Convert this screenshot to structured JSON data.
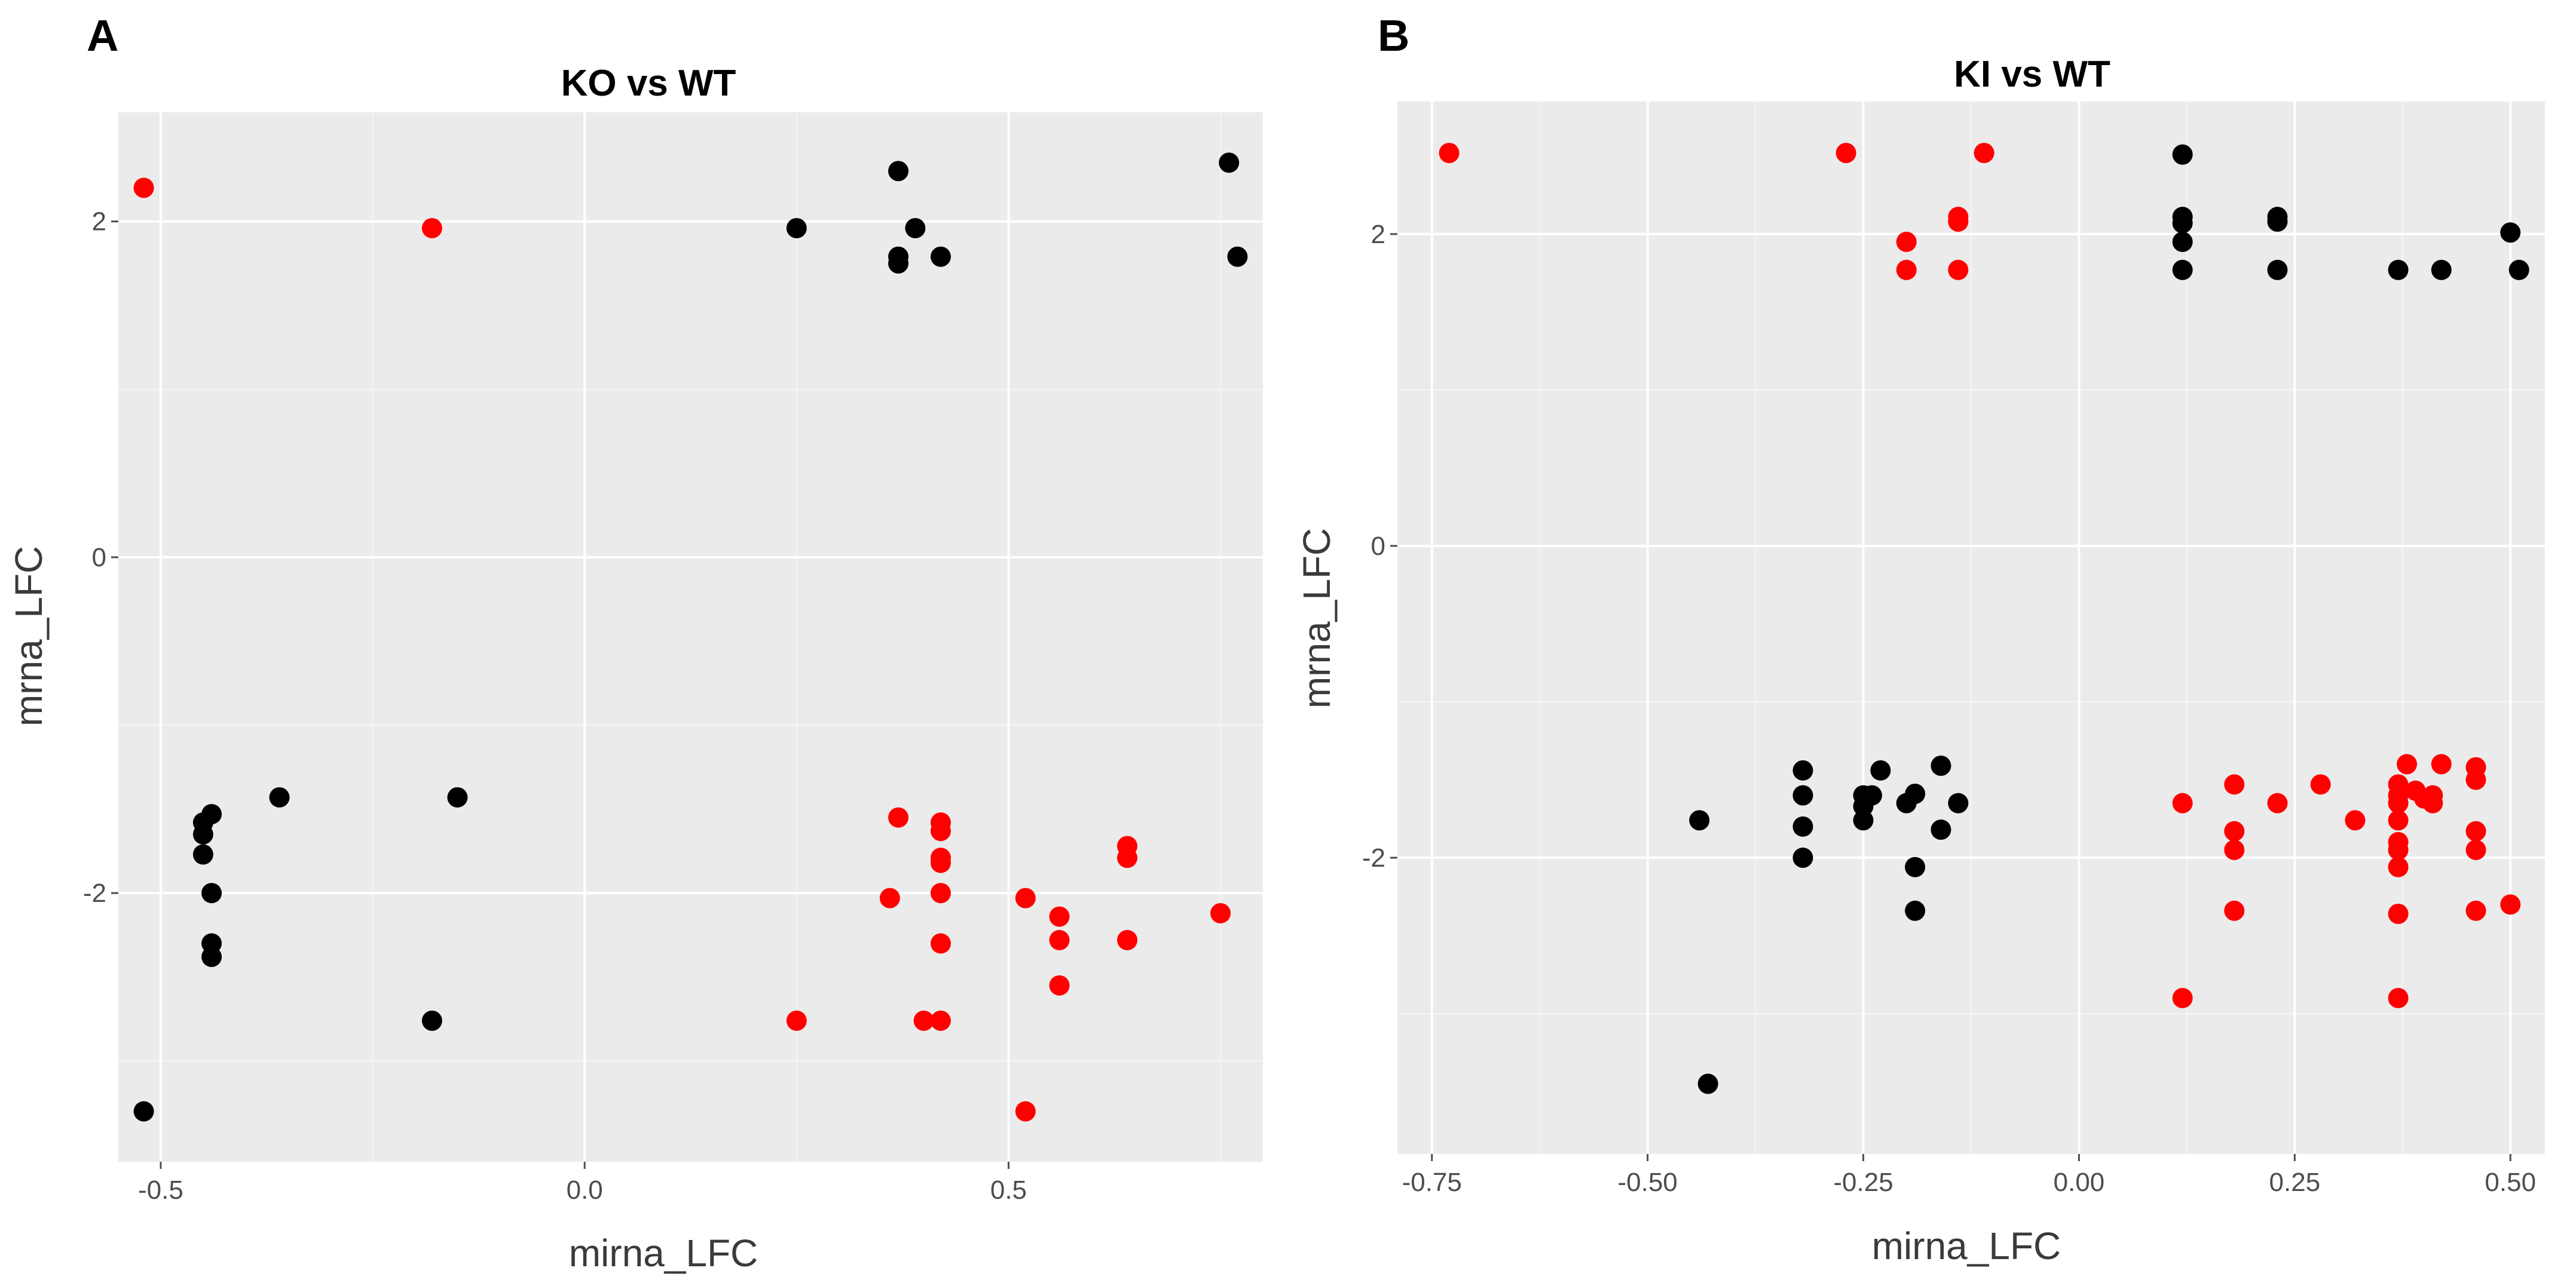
{
  "chart_data": [
    {
      "type": "scatter",
      "panel_label": "A",
      "title": "KO vs WT",
      "xlabel": "mirna_LFC",
      "ylabel": "mrna_LFC",
      "xlim": [
        -0.55,
        0.8
      ],
      "ylim": [
        -3.6,
        2.65
      ],
      "xticks": [
        -0.5,
        0.0,
        0.5
      ],
      "xtick_labels": [
        "-0.5",
        "0.0",
        "0.5"
      ],
      "yticks": [
        -2,
        0,
        2
      ],
      "ytick_labels": [
        "-2",
        "0",
        "2"
      ],
      "grid": true,
      "legend": "none",
      "series": [
        {
          "color": "#000000",
          "points": [
            [
              0.25,
              1.96
            ],
            [
              0.37,
              2.3
            ],
            [
              0.37,
              1.79
            ],
            [
              0.37,
              1.75
            ],
            [
              0.39,
              1.96
            ],
            [
              0.42,
              1.79
            ],
            [
              0.76,
              2.35
            ],
            [
              0.77,
              1.79
            ],
            [
              -0.52,
              -3.3
            ],
            [
              -0.45,
              -1.58
            ],
            [
              -0.45,
              -1.65
            ],
            [
              -0.45,
              -1.77
            ],
            [
              -0.44,
              -1.53
            ],
            [
              -0.44,
              -2.0
            ],
            [
              -0.44,
              -2.3
            ],
            [
              -0.44,
              -2.38
            ],
            [
              -0.36,
              -1.43
            ],
            [
              -0.15,
              -1.43
            ],
            [
              -0.18,
              -2.76
            ]
          ]
        },
        {
          "color": "#ff0000",
          "points": [
            [
              -0.52,
              2.2
            ],
            [
              -0.18,
              1.96
            ],
            [
              0.25,
              -2.76
            ],
            [
              0.36,
              -2.03
            ],
            [
              0.37,
              -1.55
            ],
            [
              0.4,
              -2.76
            ],
            [
              0.42,
              -1.58
            ],
            [
              0.42,
              -1.63
            ],
            [
              0.42,
              -1.79
            ],
            [
              0.42,
              -1.82
            ],
            [
              0.42,
              -2.0
            ],
            [
              0.42,
              -2.3
            ],
            [
              0.42,
              -2.76
            ],
            [
              0.52,
              -2.03
            ],
            [
              0.52,
              -3.3
            ],
            [
              0.56,
              -2.14
            ],
            [
              0.56,
              -2.28
            ],
            [
              0.56,
              -2.55
            ],
            [
              0.64,
              -1.72
            ],
            [
              0.64,
              -1.79
            ],
            [
              0.64,
              -2.28
            ],
            [
              0.75,
              -2.12
            ]
          ]
        }
      ]
    },
    {
      "type": "scatter",
      "panel_label": "B",
      "title": "KI vs WT",
      "xlabel": "mirna_LFC",
      "ylabel": "mrna_LFC",
      "xlim": [
        -0.79,
        0.54
      ],
      "ylim": [
        -3.9,
        2.85
      ],
      "xticks": [
        -0.75,
        -0.5,
        -0.25,
        0.0,
        0.25,
        0.5
      ],
      "xtick_labels": [
        "-0.75",
        "-0.50",
        "-0.25",
        "0.00",
        "0.25",
        "0.50"
      ],
      "yticks": [
        -2,
        0,
        2
      ],
      "ytick_labels": [
        "-2",
        "0",
        "2"
      ],
      "grid": true,
      "legend": "none",
      "series": [
        {
          "color": "#000000",
          "points": [
            [
              0.12,
              2.51
            ],
            [
              0.12,
              2.11
            ],
            [
              0.12,
              2.07
            ],
            [
              0.12,
              1.95
            ],
            [
              0.12,
              1.77
            ],
            [
              0.23,
              2.11
            ],
            [
              0.23,
              2.08
            ],
            [
              0.23,
              1.77
            ],
            [
              0.37,
              1.77
            ],
            [
              0.42,
              1.77
            ],
            [
              0.5,
              2.01
            ],
            [
              0.51,
              1.77
            ],
            [
              -0.44,
              -1.76
            ],
            [
              -0.43,
              -3.45
            ],
            [
              -0.32,
              -1.44
            ],
            [
              -0.32,
              -1.6
            ],
            [
              -0.32,
              -1.8
            ],
            [
              -0.32,
              -2.0
            ],
            [
              -0.25,
              -1.6
            ],
            [
              -0.25,
              -1.67
            ],
            [
              -0.25,
              -1.76
            ],
            [
              -0.24,
              -1.6
            ],
            [
              -0.23,
              -1.44
            ],
            [
              -0.2,
              -1.65
            ],
            [
              -0.19,
              -1.59
            ],
            [
              -0.19,
              -2.06
            ],
            [
              -0.19,
              -2.34
            ],
            [
              -0.16,
              -1.41
            ],
            [
              -0.16,
              -1.82
            ],
            [
              -0.14,
              -1.65
            ]
          ]
        },
        {
          "color": "#ff0000",
          "points": [
            [
              -0.73,
              2.52
            ],
            [
              -0.27,
              2.52
            ],
            [
              -0.11,
              2.52
            ],
            [
              -0.2,
              1.95
            ],
            [
              -0.2,
              1.77
            ],
            [
              -0.14,
              2.11
            ],
            [
              -0.14,
              2.08
            ],
            [
              -0.14,
              1.77
            ],
            [
              0.12,
              -1.65
            ],
            [
              0.12,
              -2.9
            ],
            [
              0.18,
              -1.53
            ],
            [
              0.18,
              -1.83
            ],
            [
              0.18,
              -1.95
            ],
            [
              0.18,
              -2.34
            ],
            [
              0.23,
              -1.65
            ],
            [
              0.28,
              -1.53
            ],
            [
              0.32,
              -1.76
            ],
            [
              0.37,
              -1.53
            ],
            [
              0.37,
              -1.6
            ],
            [
              0.37,
              -1.65
            ],
            [
              0.37,
              -1.76
            ],
            [
              0.37,
              -1.9
            ],
            [
              0.37,
              -1.95
            ],
            [
              0.37,
              -2.06
            ],
            [
              0.37,
              -2.36
            ],
            [
              0.37,
              -2.9
            ],
            [
              0.38,
              -1.4
            ],
            [
              0.39,
              -1.57
            ],
            [
              0.4,
              -1.62
            ],
            [
              0.41,
              -1.6
            ],
            [
              0.41,
              -1.65
            ],
            [
              0.42,
              -1.4
            ],
            [
              0.46,
              -1.42
            ],
            [
              0.46,
              -1.5
            ],
            [
              0.46,
              -1.83
            ],
            [
              0.46,
              -1.95
            ],
            [
              0.46,
              -2.34
            ],
            [
              0.5,
              -2.3
            ]
          ]
        }
      ]
    }
  ]
}
